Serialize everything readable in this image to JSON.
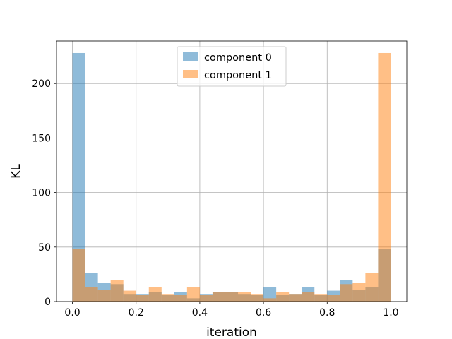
{
  "chart_data": {
    "type": "bar",
    "xlabel": "iteration",
    "ylabel": "KL",
    "xlim": [
      -0.05,
      1.05
    ],
    "ylim": [
      0,
      239
    ],
    "xticks": [
      "0.0",
      "0.2",
      "0.4",
      "0.6",
      "0.8",
      "1.0"
    ],
    "yticks": [
      "0",
      "50",
      "100",
      "150",
      "200"
    ],
    "grid": true,
    "legend_position": "top-center",
    "bins": {
      "start": 0.0,
      "end": 1.0,
      "count": 25
    },
    "series": [
      {
        "name": "component 0",
        "color": "#1f77b4",
        "opacity": 0.5,
        "values": [
          228,
          26,
          17,
          16,
          7,
          7,
          9,
          6,
          9,
          3,
          7,
          9,
          9,
          7,
          6,
          13,
          6,
          7,
          13,
          6,
          10,
          20,
          11,
          13,
          48
        ]
      },
      {
        "name": "component 1",
        "color": "#ff7f0e",
        "opacity": 0.5,
        "values": [
          48,
          13,
          11,
          20,
          10,
          6,
          13,
          7,
          6,
          13,
          6,
          9,
          9,
          9,
          7,
          3,
          9,
          7,
          9,
          7,
          6,
          16,
          17,
          26,
          228
        ]
      }
    ]
  }
}
